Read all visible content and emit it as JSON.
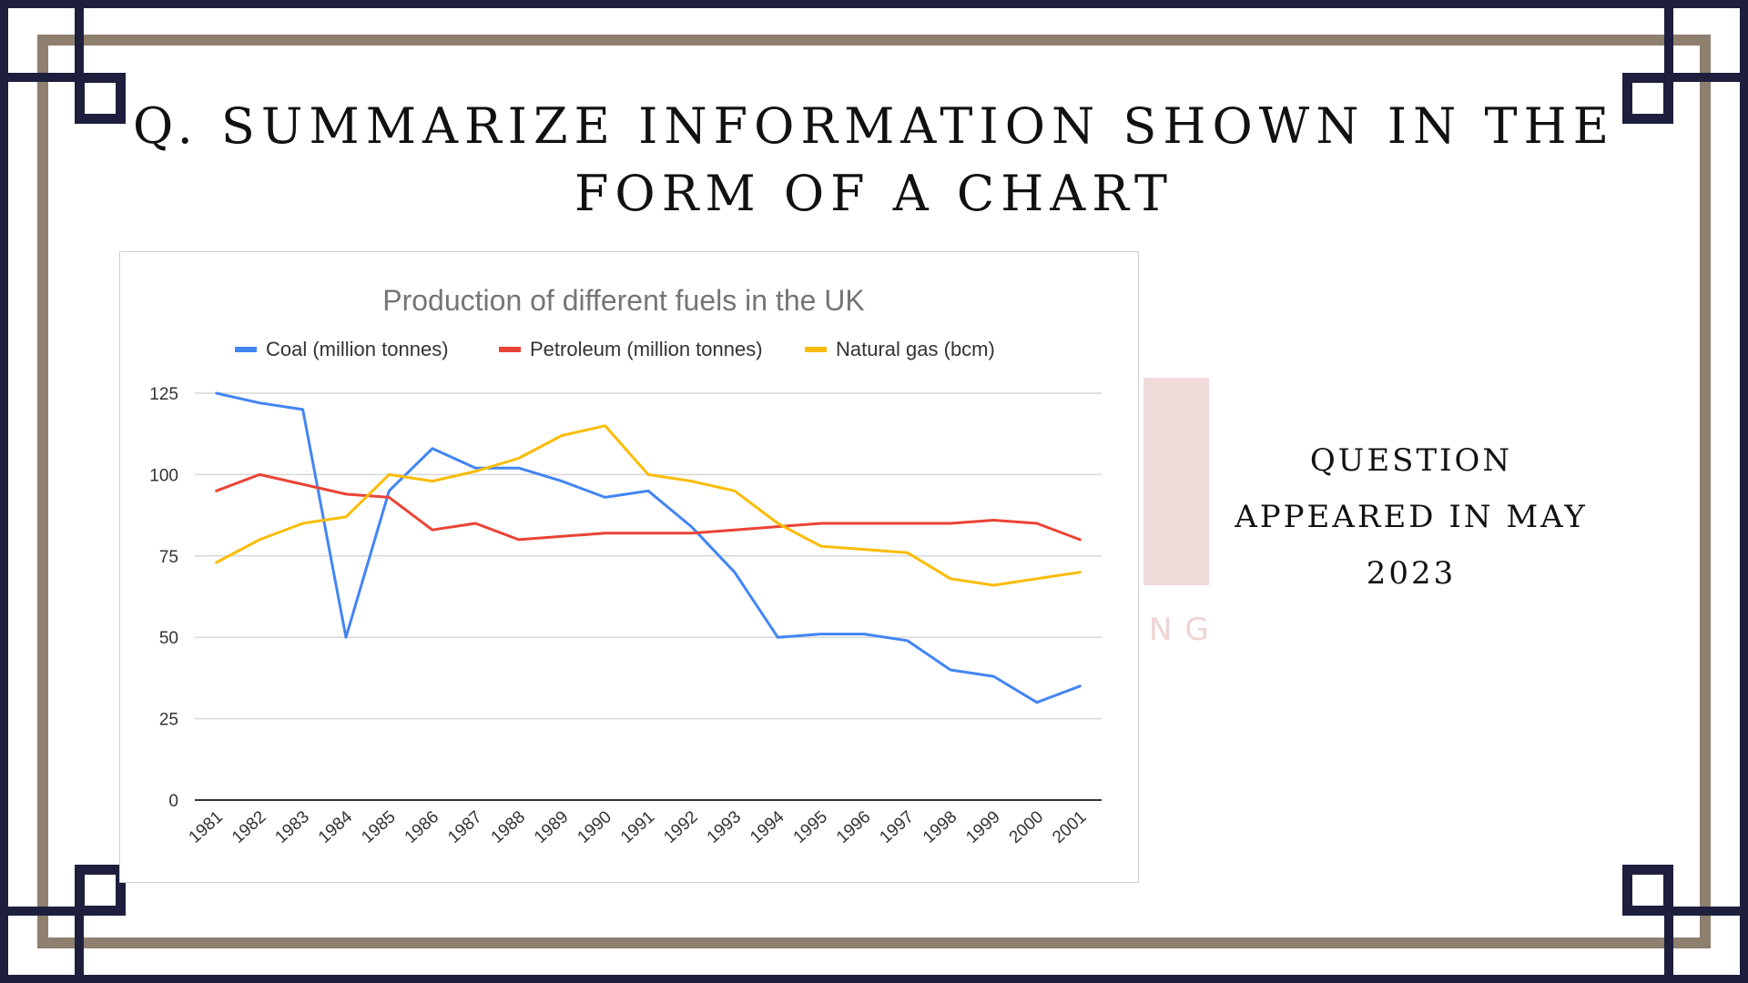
{
  "slide": {
    "title": "Q. Summarize Information Shown in the Form of a Chart",
    "side_note": "Question Appeared in May 2023",
    "watermark_text": "NG"
  },
  "colors": {
    "frame_navy": "#1d1f3d",
    "frame_taupe": "#8e7f6f",
    "coal": "#4285f4",
    "petroleum": "#ea4335",
    "gas": "#fbbc04"
  },
  "chart_data": {
    "type": "line",
    "title": "Production of different fuels in the UK",
    "x": [
      "1981",
      "1982",
      "1983",
      "1984",
      "1985",
      "1986",
      "1987",
      "1988",
      "1989",
      "1990",
      "1991",
      "1992",
      "1993",
      "1994",
      "1995",
      "1996",
      "1997",
      "1998",
      "1999",
      "2000",
      "2001"
    ],
    "series": [
      {
        "name": "Coal (million tonnes)",
        "color": "#4285f4",
        "values": [
          125,
          122,
          120,
          50,
          95,
          108,
          102,
          102,
          98,
          93,
          95,
          84,
          70,
          50,
          51,
          51,
          49,
          40,
          38,
          30,
          35
        ]
      },
      {
        "name": "Petroleum (million tonnes)",
        "color": "#ea4335",
        "values": [
          95,
          100,
          97,
          94,
          93,
          83,
          85,
          80,
          81,
          82,
          82,
          82,
          83,
          84,
          85,
          85,
          85,
          85,
          86,
          85,
          80
        ]
      },
      {
        "name": "Natural gas (bcm)",
        "color": "#fbbc04",
        "values": [
          73,
          80,
          85,
          87,
          100,
          98,
          101,
          105,
          112,
          115,
          100,
          98,
          95,
          85,
          78,
          77,
          76,
          68,
          66,
          68,
          70
        ]
      }
    ],
    "yticks": [
      0,
      25,
      50,
      75,
      100,
      125
    ],
    "ylim": [
      0,
      125
    ],
    "grid": true,
    "legend": "top"
  }
}
